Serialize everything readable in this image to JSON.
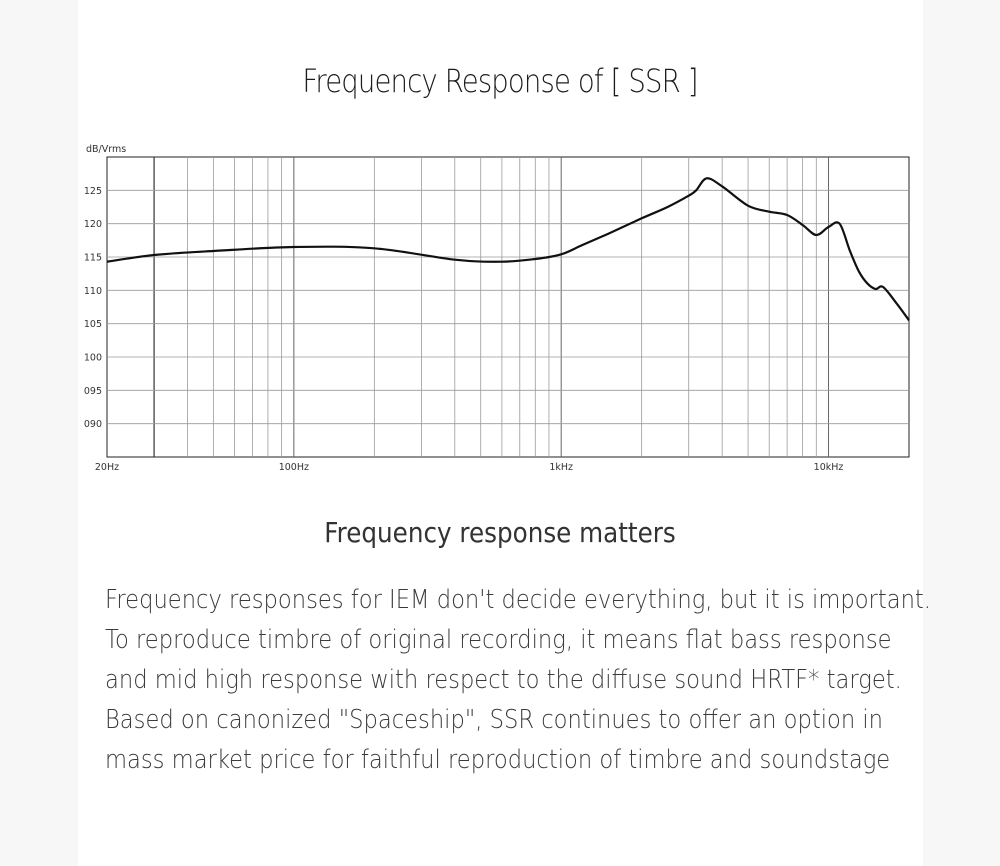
{
  "chart_data": {
    "type": "line",
    "title": "Frequency Response of [ SSR ]",
    "ylabel": "dB/Vrms",
    "xscale": "log",
    "xlim": [
      20,
      20000
    ],
    "ylim": [
      85,
      130
    ],
    "grid": true,
    "y_ticks": [
      {
        "value": 90,
        "label": "090"
      },
      {
        "value": 95,
        "label": "095"
      },
      {
        "value": 100,
        "label": "100"
      },
      {
        "value": 105,
        "label": "105"
      },
      {
        "value": 110,
        "label": "110"
      },
      {
        "value": 115,
        "label": "115"
      },
      {
        "value": 120,
        "label": "120"
      },
      {
        "value": 125,
        "label": "125"
      }
    ],
    "x_ticks": [
      {
        "value": 20,
        "label": "20Hz"
      },
      {
        "value": 100,
        "label": "100Hz"
      },
      {
        "value": 1000,
        "label": "1kHz"
      },
      {
        "value": 10000,
        "label": "10kHz"
      }
    ],
    "series": [
      {
        "x": [
          20,
          30,
          50,
          100,
          200,
          400,
          600,
          800,
          1000,
          1200,
          1500,
          2000,
          2500,
          3000,
          3200,
          3500,
          4000,
          5000,
          6000,
          7000,
          8000,
          9000,
          10000,
          11000,
          12000,
          13000,
          14000,
          15000,
          16000,
          18000,
          20000
        ],
        "y": [
          114.3,
          115.3,
          115.9,
          116.5,
          116.3,
          114.6,
          114.3,
          114.7,
          115.4,
          116.8,
          118.5,
          120.8,
          122.5,
          124.2,
          125.0,
          126.8,
          125.6,
          122.7,
          121.8,
          121.3,
          119.8,
          118.3,
          119.5,
          120.0,
          116.0,
          112.8,
          111.0,
          110.2,
          110.5,
          108.0,
          105.5
        ]
      }
    ]
  },
  "content": {
    "heading": "Frequency response matters",
    "paragraph_lines": [
      "Frequency responses for IEM don't decide everything, but it is important.",
      "To reproduce timbre of original recording, it means flat bass response",
      "and mid high response with respect to the diffuse sound HRTF* target.",
      "Based on canonized \"Spaceship\", SSR continues to offer an option in",
      "mass market price for faithful reproduction of timbre and soundstage"
    ]
  },
  "colors": {
    "grid": "#9a9a9a",
    "curve": "#111111",
    "axis_text": "#333333"
  }
}
